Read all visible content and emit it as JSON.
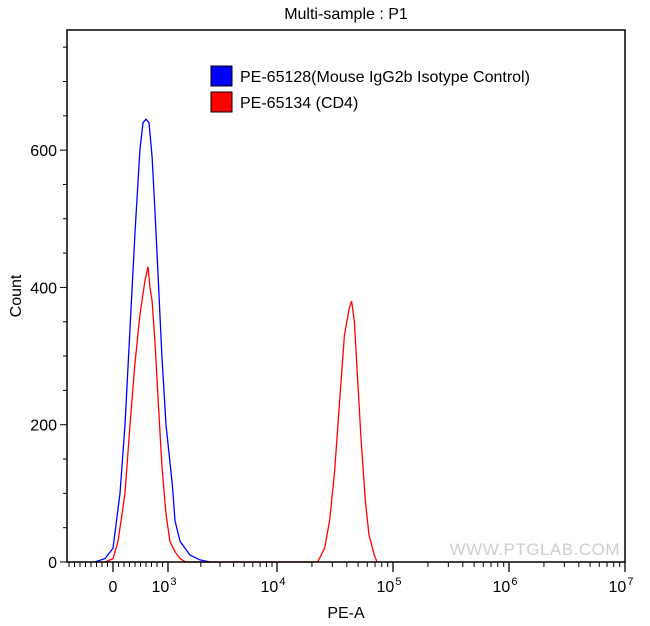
{
  "chart_data": {
    "type": "line",
    "title": "Multi-sample : P1",
    "xlabel": "PE-A",
    "ylabel": "Count",
    "x_scale": "biexponential",
    "xlim": [
      -836,
      10000000
    ],
    "ylim": [
      0,
      775
    ],
    "grid": false,
    "legend_position": "top-right",
    "x_ticks": [
      {
        "value": 0,
        "label": "0",
        "exp": ""
      },
      {
        "value": 1000,
        "label": "10",
        "exp": "3"
      },
      {
        "value": 10000,
        "label": "10",
        "exp": "4"
      },
      {
        "value": 100000,
        "label": "10",
        "exp": "5"
      },
      {
        "value": 1000000,
        "label": "10",
        "exp": "6"
      },
      {
        "value": 10000000,
        "label": "10",
        "exp": "7"
      }
    ],
    "y_ticks": [
      0,
      200,
      400,
      600
    ],
    "series": [
      {
        "name": "PE-65128(Mouse IgG2b Isotype Control)",
        "color": "#0000ff",
        "points": [
          [
            -330,
            0
          ],
          [
            -145,
            5
          ],
          [
            0,
            20
          ],
          [
            127,
            100
          ],
          [
            218,
            200
          ],
          [
            309,
            340
          ],
          [
            400,
            480
          ],
          [
            490,
            600
          ],
          [
            545,
            640
          ],
          [
            600,
            645
          ],
          [
            655,
            640
          ],
          [
            710,
            590
          ],
          [
            764,
            510
          ],
          [
            818,
            420
          ],
          [
            890,
            300
          ],
          [
            964,
            200
          ],
          [
            1100,
            110
          ],
          [
            1160,
            60
          ],
          [
            1290,
            30
          ],
          [
            1590,
            10
          ],
          [
            1965,
            3
          ],
          [
            2430,
            0
          ]
        ]
      },
      {
        "name": "PE-65134 (CD4)",
        "color": "#ff0000",
        "points": [
          [
            -145,
            0
          ],
          [
            0,
            5
          ],
          [
            90,
            30
          ],
          [
            218,
            100
          ],
          [
            309,
            200
          ],
          [
            400,
            290
          ],
          [
            490,
            360
          ],
          [
            582,
            410
          ],
          [
            636,
            430
          ],
          [
            673,
            400
          ],
          [
            710,
            380
          ],
          [
            764,
            320
          ],
          [
            818,
            240
          ],
          [
            890,
            140
          ],
          [
            964,
            70
          ],
          [
            1040,
            30
          ],
          [
            1160,
            15
          ],
          [
            1290,
            5
          ],
          [
            1450,
            0
          ],
          [
            22400,
            0
          ],
          [
            25700,
            20
          ],
          [
            28400,
            60
          ],
          [
            31300,
            130
          ],
          [
            34500,
            230
          ],
          [
            38100,
            330
          ],
          [
            42000,
            370
          ],
          [
            44000,
            380
          ],
          [
            46500,
            350
          ],
          [
            49000,
            280
          ],
          [
            53000,
            180
          ],
          [
            57700,
            90
          ],
          [
            62000,
            40
          ],
          [
            69000,
            10
          ],
          [
            73000,
            0
          ]
        ]
      }
    ],
    "watermark": "WWW.PTGLAB.COM"
  }
}
